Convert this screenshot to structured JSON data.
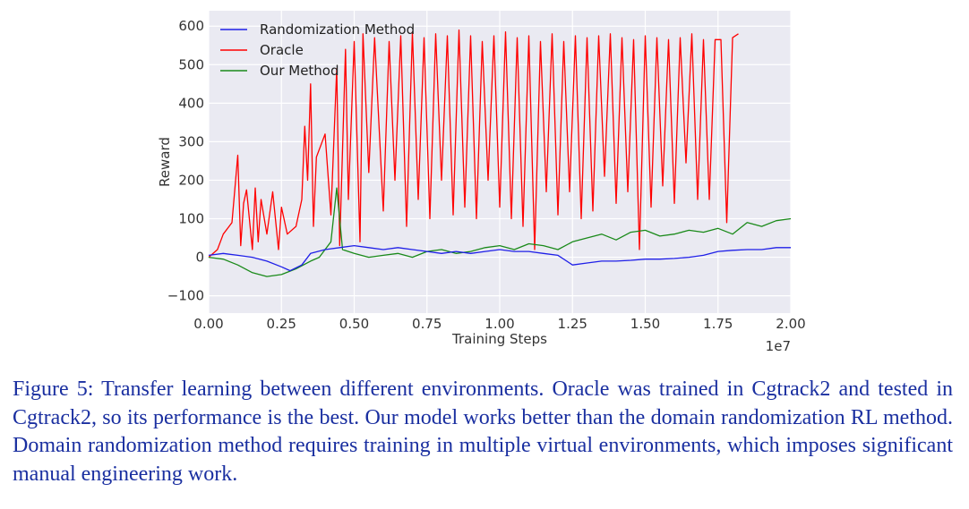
{
  "caption": "Figure 5: Transfer learning between different environments. Oracle was trained in Cgtrack2 and tested in Cgtrack2, so its performance is the best. Our model works better than the domain randomization RL method. Domain randomization method requires training in multiple virtual environments, which imposes significant manual engineering work.",
  "chart_data": {
    "type": "line",
    "xlabel": "Training Steps",
    "ylabel": "Reward",
    "x_offset_label": "1e7",
    "xlim": [
      0,
      2.0
    ],
    "ylim": [
      -145,
      640
    ],
    "xticks": [
      "0.00",
      "0.25",
      "0.50",
      "0.75",
      "1.00",
      "1.25",
      "1.50",
      "1.75",
      "2.00"
    ],
    "xtick_values": [
      0,
      0.25,
      0.5,
      0.75,
      1.0,
      1.25,
      1.5,
      1.75,
      2.0
    ],
    "yticks": [
      "−100",
      "0",
      "100",
      "200",
      "300",
      "400",
      "500",
      "600"
    ],
    "ytick_values": [
      -100,
      0,
      100,
      200,
      300,
      400,
      500,
      600
    ],
    "grid": true,
    "legend_position": "top-left",
    "background": "#eaeaf2",
    "series": [
      {
        "name": "Randomization Method",
        "color": "#1f1fe8",
        "x": [
          0,
          0.05,
          0.1,
          0.15,
          0.2,
          0.25,
          0.28,
          0.32,
          0.35,
          0.4,
          0.45,
          0.5,
          0.55,
          0.6,
          0.65,
          0.7,
          0.75,
          0.8,
          0.85,
          0.9,
          0.95,
          1.0,
          1.05,
          1.1,
          1.15,
          1.2,
          1.25,
          1.3,
          1.35,
          1.4,
          1.45,
          1.5,
          1.55,
          1.6,
          1.65,
          1.7,
          1.75,
          1.8,
          1.85,
          1.9,
          1.95,
          2.0
        ],
        "y": [
          5,
          10,
          5,
          0,
          -10,
          -25,
          -35,
          -20,
          10,
          20,
          25,
          30,
          25,
          20,
          25,
          20,
          15,
          10,
          15,
          10,
          15,
          20,
          15,
          15,
          10,
          5,
          -20,
          -15,
          -10,
          -10,
          -8,
          -5,
          -5,
          -3,
          0,
          5,
          15,
          18,
          20,
          20,
          25,
          25
        ]
      },
      {
        "name": "Oracle",
        "color": "#ff0000",
        "x": [
          0,
          0.03,
          0.05,
          0.07,
          0.08,
          0.1,
          0.11,
          0.12,
          0.13,
          0.15,
          0.16,
          0.17,
          0.18,
          0.2,
          0.22,
          0.24,
          0.25,
          0.27,
          0.3,
          0.32,
          0.33,
          0.34,
          0.35,
          0.36,
          0.37,
          0.4,
          0.42,
          0.44,
          0.45,
          0.47,
          0.48,
          0.5,
          0.52,
          0.53,
          0.55,
          0.57,
          0.6,
          0.62,
          0.64,
          0.66,
          0.68,
          0.7,
          0.72,
          0.74,
          0.76,
          0.78,
          0.8,
          0.82,
          0.84,
          0.86,
          0.88,
          0.9,
          0.92,
          0.94,
          0.96,
          0.98,
          1.0,
          1.02,
          1.04,
          1.06,
          1.08,
          1.1,
          1.12,
          1.14,
          1.16,
          1.18,
          1.2,
          1.22,
          1.24,
          1.26,
          1.28,
          1.3,
          1.32,
          1.34,
          1.36,
          1.38,
          1.4,
          1.42,
          1.44,
          1.46,
          1.48,
          1.5,
          1.52,
          1.54,
          1.56,
          1.58,
          1.6,
          1.62,
          1.64,
          1.66,
          1.68,
          1.7,
          1.72,
          1.74,
          1.76,
          1.78,
          1.8,
          1.82
        ],
        "y": [
          0,
          20,
          60,
          80,
          90,
          265,
          30,
          140,
          175,
          20,
          180,
          40,
          150,
          60,
          170,
          20,
          130,
          60,
          80,
          150,
          340,
          200,
          450,
          80,
          260,
          320,
          110,
          490,
          30,
          540,
          150,
          560,
          40,
          580,
          220,
          570,
          120,
          560,
          200,
          575,
          80,
          585,
          150,
          570,
          100,
          580,
          200,
          575,
          110,
          590,
          130,
          575,
          100,
          560,
          200,
          575,
          130,
          585,
          100,
          570,
          80,
          575,
          20,
          560,
          170,
          580,
          110,
          560,
          170,
          575,
          100,
          570,
          120,
          575,
          210,
          580,
          140,
          570,
          170,
          565,
          20,
          575,
          130,
          570,
          185,
          565,
          140,
          570,
          245,
          580,
          150,
          565,
          150,
          565,
          565,
          90,
          570,
          580
        ]
      },
      {
        "name": "Our Method",
        "color": "#1a8a1a",
        "x": [
          0,
          0.05,
          0.1,
          0.15,
          0.2,
          0.25,
          0.3,
          0.35,
          0.38,
          0.42,
          0.44,
          0.46,
          0.5,
          0.55,
          0.6,
          0.65,
          0.7,
          0.75,
          0.8,
          0.85,
          0.9,
          0.95,
          1.0,
          1.05,
          1.1,
          1.15,
          1.2,
          1.25,
          1.3,
          1.35,
          1.4,
          1.45,
          1.5,
          1.55,
          1.6,
          1.65,
          1.7,
          1.75,
          1.8,
          1.85,
          1.9,
          1.95,
          2.0
        ],
        "y": [
          0,
          -5,
          -20,
          -40,
          -50,
          -45,
          -30,
          -10,
          0,
          40,
          180,
          20,
          10,
          0,
          5,
          10,
          0,
          15,
          20,
          10,
          15,
          25,
          30,
          20,
          35,
          30,
          20,
          40,
          50,
          60,
          45,
          65,
          70,
          55,
          60,
          70,
          65,
          75,
          60,
          90,
          80,
          95,
          100
        ]
      }
    ]
  }
}
